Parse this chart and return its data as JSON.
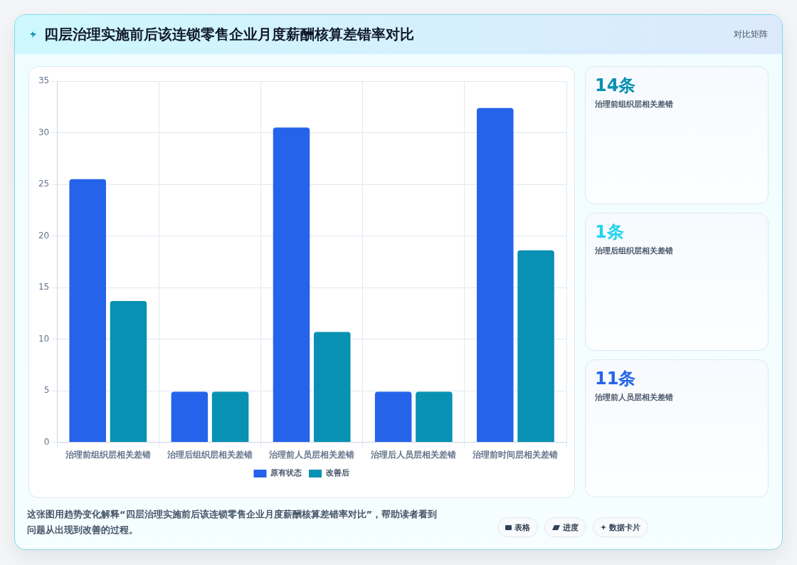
{
  "chart_data": [
    {
      "type": "bar",
      "title": "四层治理实施前后该连锁零售企业月度薪酬核算差错率对比",
      "categories": [
        "治理前组织层相关差错",
        "治理后组织层相关差错",
        "治理前人员层相关差错",
        "治理后人员层相关差错",
        "治理前时间层相关差错"
      ],
      "series": [
        {
          "name": "原有状态",
          "color": "#2563eb",
          "values": [
            25.5,
            4.9,
            30.5,
            4.9,
            32.4
          ]
        },
        {
          "name": "改善后",
          "color": "#0891b2",
          "values": [
            13.7,
            4.9,
            10.7,
            4.9,
            18.6
          ]
        }
      ],
      "ylim": [
        0,
        35
      ],
      "yticks": [
        0,
        5,
        10,
        15,
        20,
        25,
        30,
        35
      ],
      "grid": true,
      "legend": "bottom",
      "annotations": [
        "对比矩阵",
        "这张图用趋势变化解释“四层治理实施前后该连锁零售企业月度薪酬核算差错率对比”，帮助读者看到问题从出现到改善的过程。",
        "表格",
        "进度",
        "数据卡片"
      ]
    },
    {
      "type": "other",
      "title": "14条",
      "subtitle": "治理前组织层相关差错",
      "color": "#0891b2"
    },
    {
      "type": "other",
      "title": "1条",
      "subtitle": "治理后组织层相关差错",
      "color": "#22d3ee"
    },
    {
      "type": "other",
      "title": "11条",
      "subtitle": "治理前人员层相关差错",
      "color": "#2563eb"
    }
  ]
}
